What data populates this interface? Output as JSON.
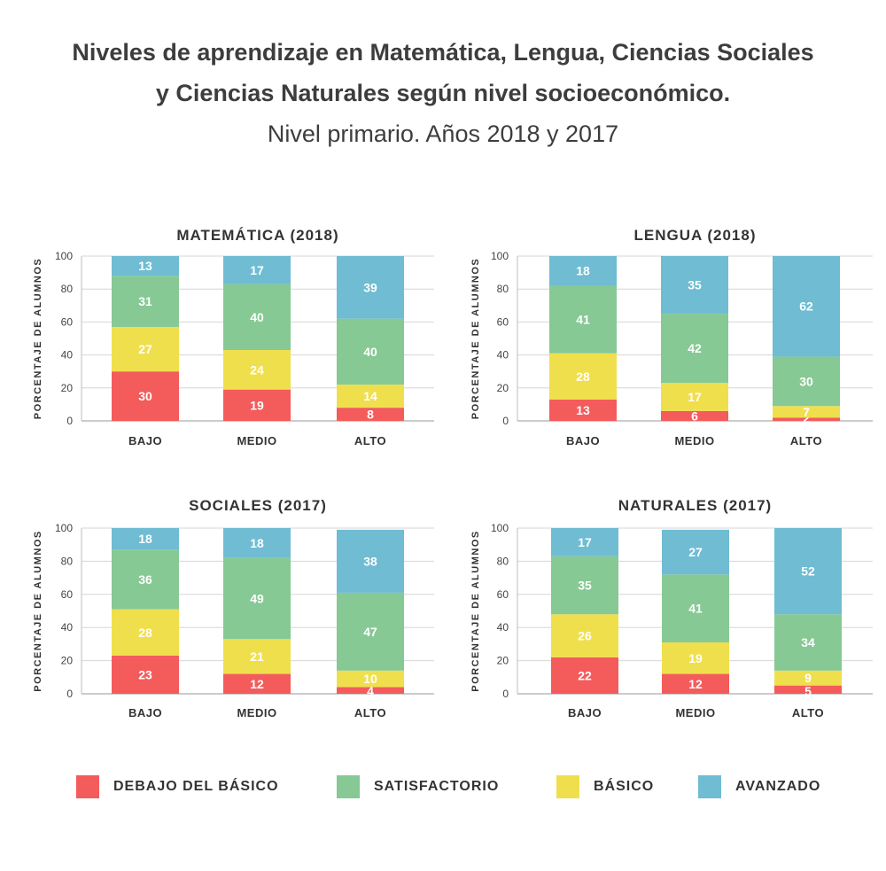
{
  "title": {
    "line1": "Niveles de aprendizaje en Matemática, Lengua, Ciencias Sociales",
    "line2": "y Ciencias Naturales según nivel socioeconómico.",
    "line3": "Nivel primario. Años 2018 y 2017"
  },
  "colors": {
    "debajo": "#f45b5b",
    "basico": "#f0df4d",
    "satisfactorio": "#86c994",
    "avanzado": "#6fbcd3"
  },
  "legend": [
    {
      "key": "debajo",
      "label": "DEBAJO DEL BÁSICO"
    },
    {
      "key": "satisfactorio",
      "label": "SATISFACTORIO"
    },
    {
      "key": "basico",
      "label": "BÁSICO"
    },
    {
      "key": "avanzado",
      "label": "AVANZADO"
    }
  ],
  "chart_data": [
    {
      "type": "bar",
      "stacked": true,
      "title": "MATEMÁTICA (2018)",
      "ylabel": "PORCENTAJE DE ALUMNOS",
      "ylim": [
        0,
        100
      ],
      "yticks": [
        "0",
        "20",
        "40",
        "60",
        "80",
        "100"
      ],
      "categories": [
        "BAJO",
        "MEDIO",
        "ALTO"
      ],
      "series": [
        {
          "name": "DEBAJO DEL BÁSICO",
          "key": "debajo",
          "values": [
            30,
            19,
            8
          ]
        },
        {
          "name": "BÁSICO",
          "key": "basico",
          "values": [
            27,
            24,
            14
          ]
        },
        {
          "name": "SATISFACTORIO",
          "key": "satisfactorio",
          "values": [
            31,
            40,
            40
          ]
        },
        {
          "name": "AVANZADO",
          "key": "avanzado",
          "values": [
            13,
            17,
            39
          ]
        }
      ]
    },
    {
      "type": "bar",
      "stacked": true,
      "title": "LENGUA (2018)",
      "ylabel": "PORCENTAJE DE ALUMNOS",
      "ylim": [
        0,
        100
      ],
      "yticks": [
        "0",
        "20",
        "40",
        "60",
        "80",
        "100"
      ],
      "categories": [
        "BAJO",
        "MEDIO",
        "ALTO"
      ],
      "series": [
        {
          "name": "DEBAJO DEL BÁSICO",
          "key": "debajo",
          "values": [
            13,
            6,
            2
          ]
        },
        {
          "name": "BÁSICO",
          "key": "basico",
          "values": [
            28,
            17,
            7
          ]
        },
        {
          "name": "SATISFACTORIO",
          "key": "satisfactorio",
          "values": [
            41,
            42,
            30
          ]
        },
        {
          "name": "AVANZADO",
          "key": "avanzado",
          "values": [
            18,
            35,
            62
          ]
        }
      ]
    },
    {
      "type": "bar",
      "stacked": true,
      "title": "SOCIALES (2017)",
      "ylabel": "PORCENTAJE DE ALUMNOS",
      "ylim": [
        0,
        100
      ],
      "yticks": [
        "0",
        "20",
        "40",
        "60",
        "80",
        "100"
      ],
      "categories": [
        "BAJO",
        "MEDIO",
        "ALTO"
      ],
      "series": [
        {
          "name": "DEBAJO DEL BÁSICO",
          "key": "debajo",
          "values": [
            23,
            12,
            4
          ]
        },
        {
          "name": "BÁSICO",
          "key": "basico",
          "values": [
            28,
            21,
            10
          ]
        },
        {
          "name": "SATISFACTORIO",
          "key": "satisfactorio",
          "values": [
            36,
            49,
            47
          ]
        },
        {
          "name": "AVANZADO",
          "key": "avanzado",
          "values": [
            18,
            18,
            38
          ]
        }
      ]
    },
    {
      "type": "bar",
      "stacked": true,
      "title": "NATURALES (2017)",
      "ylabel": "PORCENTAJE DE ALUMNOS",
      "ylim": [
        0,
        100
      ],
      "yticks": [
        "0",
        "20",
        "40",
        "60",
        "80",
        "100"
      ],
      "categories": [
        "BAJO",
        "MEDIO",
        "ALTO"
      ],
      "series": [
        {
          "name": "DEBAJO DEL BÁSICO",
          "key": "debajo",
          "values": [
            22,
            12,
            5
          ]
        },
        {
          "name": "BÁSICO",
          "key": "basico",
          "values": [
            26,
            19,
            9
          ]
        },
        {
          "name": "SATISFACTORIO",
          "key": "satisfactorio",
          "values": [
            35,
            41,
            34
          ]
        },
        {
          "name": "AVANZADO",
          "key": "avanzado",
          "values": [
            17,
            27,
            52
          ]
        }
      ]
    }
  ]
}
